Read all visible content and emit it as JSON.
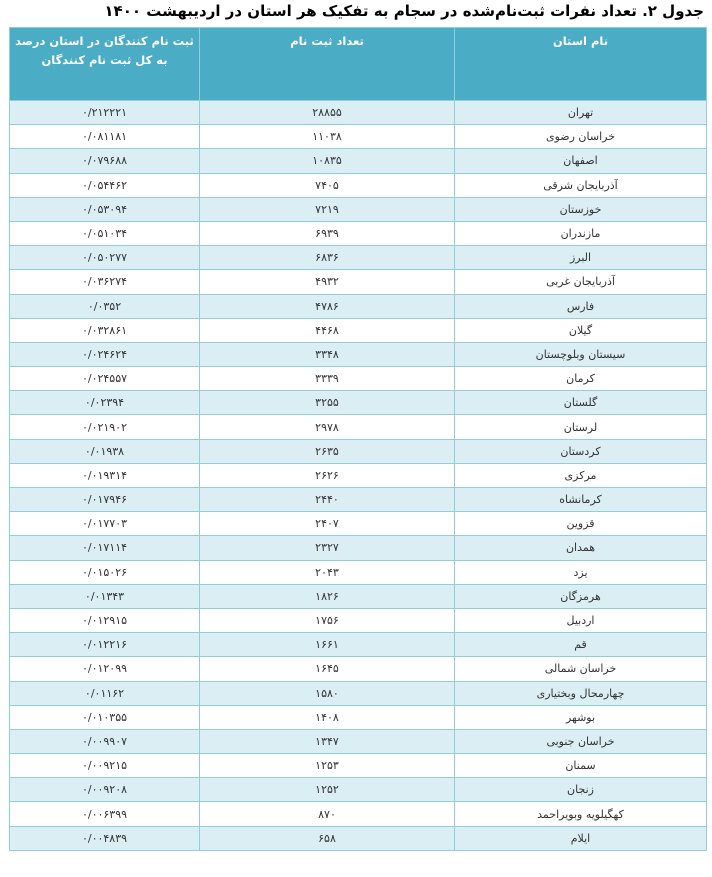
{
  "title": "جدول ۲. تعداد نفرات ثبت‌نام‌شده در سجام به تفکیک هر استان در اردیبهشت ۱۴۰۰",
  "header": {
    "province": "نام استان",
    "count": "تعداد ثبت نام",
    "percent": "ثبت نام کنندگان در استان  درصد به کل ثبت نام کنندگان"
  },
  "colors": {
    "header_bg": "#4bacc6",
    "stripe": "#daeef3",
    "border": "#92cddc"
  },
  "rows": [
    {
      "province": "تهران",
      "count": "۲۸۸۵۵",
      "percent": "۰/۲۱۲۲۲۱"
    },
    {
      "province": "خراسان رضوی",
      "count": "۱۱۰۳۸",
      "percent": "۰/۰۸۱۱۸۱"
    },
    {
      "province": "اصفهان",
      "count": "۱۰۸۳۵",
      "percent": "۰/۰۷۹۶۸۸"
    },
    {
      "province": "آذربایجان شرقی",
      "count": "۷۴۰۵",
      "percent": "۰/۰۵۴۴۶۲"
    },
    {
      "province": "خوزستان",
      "count": "۷۲۱۹",
      "percent": "۰/۰۵۳۰۹۴"
    },
    {
      "province": "مازندران",
      "count": "۶۹۳۹",
      "percent": "۰/۰۵۱۰۳۴"
    },
    {
      "province": "البرز",
      "count": "۶۸۳۶",
      "percent": "۰/۰۵۰۲۷۷"
    },
    {
      "province": "آذربایجان غربی",
      "count": "۴۹۳۲",
      "percent": "۰/۰۳۶۲۷۴"
    },
    {
      "province": "فارس",
      "count": "۴۷۸۶",
      "percent": "۰/۰۳۵۲"
    },
    {
      "province": "گیلان",
      "count": "۴۴۶۸",
      "percent": "۰/۰۳۲۸۶۱"
    },
    {
      "province": "سیستان وبلوچستان",
      "count": "۳۳۴۸",
      "percent": "۰/۰۲۴۶۲۴"
    },
    {
      "province": "کرمان",
      "count": "۳۳۳۹",
      "percent": "۰/۰۲۴۵۵۷"
    },
    {
      "province": "گلستان",
      "count": "۳۲۵۵",
      "percent": "۰/۰۲۳۹۴"
    },
    {
      "province": "لرستان",
      "count": "۲۹۷۸",
      "percent": "۰/۰۲۱۹۰۲"
    },
    {
      "province": "کردستان",
      "count": "۲۶۳۵",
      "percent": "۰/۰۱۹۳۸"
    },
    {
      "province": "مرکزی",
      "count": "۲۶۲۶",
      "percent": "۰/۰۱۹۳۱۴"
    },
    {
      "province": "کرمانشاه",
      "count": "۲۴۴۰",
      "percent": "۰/۰۱۷۹۴۶"
    },
    {
      "province": "قزوین",
      "count": "۲۴۰۷",
      "percent": "۰/۰۱۷۷۰۳"
    },
    {
      "province": "همدان",
      "count": "۲۳۲۷",
      "percent": "۰/۰۱۷۱۱۴"
    },
    {
      "province": "یزد",
      "count": "۲۰۴۳",
      "percent": "۰/۰۱۵۰۲۶"
    },
    {
      "province": "هرمزگان",
      "count": "۱۸۲۶",
      "percent": "۰/۰۱۳۴۳"
    },
    {
      "province": "اردبیل",
      "count": "۱۷۵۶",
      "percent": "۰/۰۱۲۹۱۵"
    },
    {
      "province": "قم",
      "count": "۱۶۶۱",
      "percent": "۰/۰۱۲۲۱۶"
    },
    {
      "province": "خراسان شمالی",
      "count": "۱۶۴۵",
      "percent": "۰/۰۱۲۰۹۹"
    },
    {
      "province": "چهارمحال وبختیاری",
      "count": "۱۵۸۰",
      "percent": "۰/۰۱۱۶۲"
    },
    {
      "province": "بوشهر",
      "count": "۱۴۰۸",
      "percent": "۰/۰۱۰۳۵۵"
    },
    {
      "province": "خراسان جنوبی",
      "count": "۱۳۴۷",
      "percent": "۰/۰۰۹۹۰۷"
    },
    {
      "province": "سمنان",
      "count": "۱۲۵۳",
      "percent": "۰/۰۰۹۲۱۵"
    },
    {
      "province": "زنجان",
      "count": "۱۲۵۲",
      "percent": "۰/۰۰۹۲۰۸"
    },
    {
      "province": "کهگیلویه وبویراحمد",
      "count": "۸۷۰",
      "percent": "۰/۰۰۶۳۹۹"
    },
    {
      "province": "ایلام",
      "count": "۶۵۸",
      "percent": "۰/۰۰۴۸۳۹"
    }
  ]
}
